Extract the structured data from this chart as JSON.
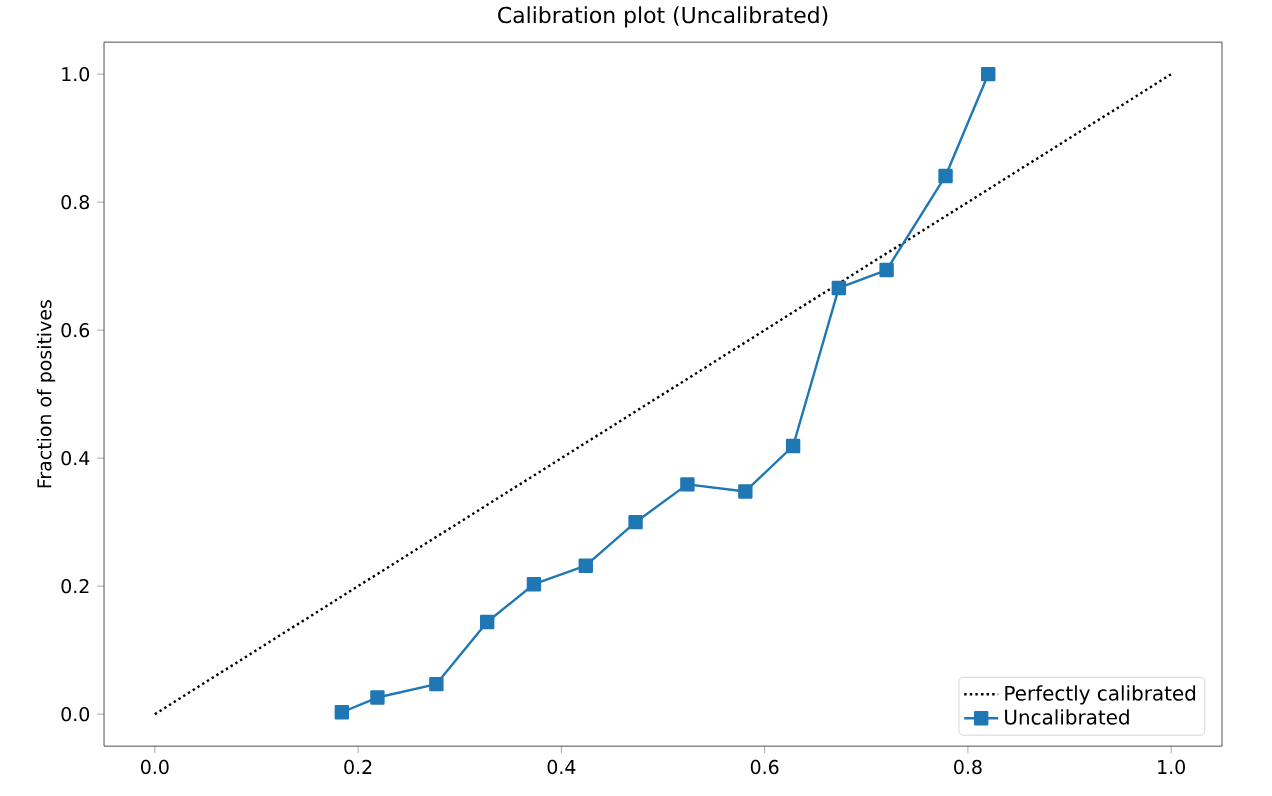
{
  "chart_data": {
    "type": "line",
    "title": "Calibration plot (Uncalibrated)",
    "ylabel": "Fraction of positives",
    "series": [
      {
        "name": "Perfectly calibrated",
        "color": "#000000",
        "x": [
          0,
          1
        ],
        "values": [
          0,
          1
        ],
        "line_style": "dotted",
        "marker": "none"
      },
      {
        "name": "Uncalibrated",
        "color": "#1f77b4",
        "x": [
          0.184,
          0.219,
          0.277,
          0.327,
          0.373,
          0.424,
          0.473,
          0.524,
          0.581,
          0.628,
          0.673,
          0.72,
          0.778,
          0.82
        ],
        "values": [
          0.003,
          0.026,
          0.047,
          0.144,
          0.203,
          0.232,
          0.3,
          0.359,
          0.348,
          0.419,
          0.666,
          0.694,
          0.841,
          1.0
        ],
        "line_style": "solid",
        "marker": "square"
      }
    ],
    "xlim": [
      -0.05,
      1.05
    ],
    "ylim": [
      -0.05,
      1.05
    ],
    "xticks": [
      {
        "value": 0,
        "label": "0.0"
      },
      0.2,
      0.4,
      0.6,
      0.8,
      {
        "value": 1,
        "label": "1.0"
      }
    ],
    "yticks": [
      {
        "value": 0,
        "label": "0.0"
      },
      0.2,
      0.4,
      0.6,
      0.8,
      {
        "value": 1,
        "label": "1.0"
      }
    ],
    "legend": "bottom right"
  }
}
